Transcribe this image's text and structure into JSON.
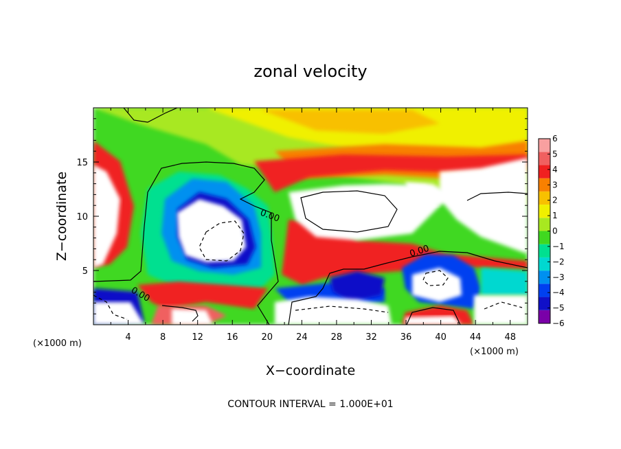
{
  "chart_data": {
    "type": "heatmap",
    "title": "zonal velocity",
    "xlabel": "X−coordinate",
    "ylabel": "Z−coordinate",
    "x_unit_label": "(×1000 m)",
    "z_unit_label": "(×1000 m)",
    "xlim": [
      0,
      50
    ],
    "ylim": [
      0,
      20
    ],
    "x_ticks": [
      4,
      8,
      12,
      16,
      20,
      24,
      28,
      32,
      36,
      40,
      44,
      48
    ],
    "y_ticks": [
      5,
      10,
      15
    ],
    "colorbar": {
      "levels": [
        -6,
        -5,
        -4,
        -3,
        -2,
        -1,
        0,
        1,
        2,
        3,
        4,
        5,
        6
      ],
      "tick_labels": [
        "6",
        "5",
        "4",
        "3",
        "2",
        "1",
        "0",
        "−1",
        "−2",
        "−3",
        "−4",
        "−5",
        "−6"
      ],
      "colors": [
        "#7a00a8",
        "#1010c8",
        "#0040f0",
        "#0090f0",
        "#00d8d0",
        "#00e090",
        "#40d820",
        "#a8e820",
        "#f0f000",
        "#f8c000",
        "#f88000",
        "#f02020",
        "#f06060",
        "#f8a0a0"
      ]
    },
    "contour_labels": [
      "0.00",
      "0.00",
      "0.00"
    ],
    "footer": "CONTOUR INTERVAL = 1.000E+01"
  }
}
